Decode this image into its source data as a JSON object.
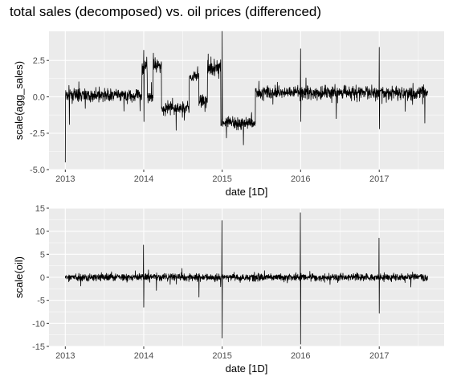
{
  "figure": {
    "title": "total sales (decomposed) vs. oil prices (differenced)"
  },
  "chart_data": [
    {
      "type": "line",
      "title": "total sales (decomposed) vs. oil prices (differenced)",
      "xlabel": "date [1D]",
      "ylabel": "scale(agg_sales)",
      "x_range": [
        "2013-01-01",
        "2017-08-15"
      ],
      "ylim": [
        -5.0,
        4.5
      ],
      "x_ticks": [
        "2013",
        "2014",
        "2015",
        "2016",
        "2017"
      ],
      "y_ticks": [
        "-5.0",
        "-2.5",
        "0.0",
        "2.5"
      ],
      "grid": true,
      "legend": "none",
      "line_color": "#000000",
      "panel_background": "#ebebeb",
      "series_regimes": [
        {
          "from": "2013-01-01",
          "to": "2013-12-24",
          "level": 0.1,
          "noise": 0.35
        },
        {
          "from": "2013-12-24",
          "to": "2014-01-18",
          "level": 2.1,
          "noise": 0.45
        },
        {
          "from": "2014-01-18",
          "to": "2014-02-14",
          "level": 0.0,
          "noise": 0.35
        },
        {
          "from": "2014-02-14",
          "to": "2014-03-25",
          "level": 2.2,
          "noise": 0.35
        },
        {
          "from": "2014-03-25",
          "to": "2014-08-01",
          "level": -0.8,
          "noise": 0.35
        },
        {
          "from": "2014-08-01",
          "to": "2014-09-15",
          "level": 1.4,
          "noise": 0.3
        },
        {
          "from": "2014-09-15",
          "to": "2014-10-25",
          "level": -0.3,
          "noise": 0.4
        },
        {
          "from": "2014-10-25",
          "to": "2014-12-26",
          "level": 2.0,
          "noise": 0.5
        },
        {
          "from": "2014-12-26",
          "to": "2015-06-05",
          "level": -1.8,
          "noise": 0.35
        },
        {
          "from": "2015-06-05",
          "to": "2017-08-15",
          "level": 0.3,
          "noise": 0.38
        }
      ],
      "series_spikes": [
        {
          "x": "2013-01-01",
          "y": -4.5
        },
        {
          "x": "2013-01-20",
          "y": -1.9
        },
        {
          "x": "2014-01-01",
          "y": 3.2
        },
        {
          "x": "2014-01-02",
          "y": -1.7
        },
        {
          "x": "2014-02-15",
          "y": 3.0
        },
        {
          "x": "2014-06-01",
          "y": -2.3
        },
        {
          "x": "2014-11-25",
          "y": 2.6
        },
        {
          "x": "2015-01-01",
          "y": 4.5
        },
        {
          "x": "2015-01-02",
          "y": -1.2
        },
        {
          "x": "2015-04-10",
          "y": -3.3
        },
        {
          "x": "2016-01-01",
          "y": 3.3
        },
        {
          "x": "2016-01-02",
          "y": -1.7
        },
        {
          "x": "2016-06-15",
          "y": -1.5
        },
        {
          "x": "2017-01-01",
          "y": 3.4
        },
        {
          "x": "2017-01-02",
          "y": -2.2
        },
        {
          "x": "2017-08-01",
          "y": -1.8
        }
      ]
    },
    {
      "type": "line",
      "title": "",
      "xlabel": "date [1D]",
      "ylabel": "scale(oil)",
      "x_range": [
        "2013-01-01",
        "2017-08-15"
      ],
      "ylim": [
        -15,
        15
      ],
      "x_ticks": [
        "2013",
        "2014",
        "2015",
        "2016",
        "2017"
      ],
      "y_ticks": [
        "-15",
        "-10",
        "-5",
        "0",
        "5",
        "10",
        "15"
      ],
      "grid": true,
      "legend": "none",
      "line_color": "#000000",
      "panel_background": "#ebebeb",
      "noise_sd": 0.7,
      "series_spikes": [
        {
          "x": "2013-12-31",
          "y": 7.0
        },
        {
          "x": "2014-01-01",
          "y": -6.5
        },
        {
          "x": "2014-09-15",
          "y": -4.3
        },
        {
          "x": "2014-12-31",
          "y": 12.3
        },
        {
          "x": "2015-01-01",
          "y": -13.2
        },
        {
          "x": "2015-12-31",
          "y": 14.0
        },
        {
          "x": "2016-01-01",
          "y": -14.5
        },
        {
          "x": "2016-12-31",
          "y": 8.5
        },
        {
          "x": "2017-01-01",
          "y": -7.8
        }
      ]
    }
  ]
}
